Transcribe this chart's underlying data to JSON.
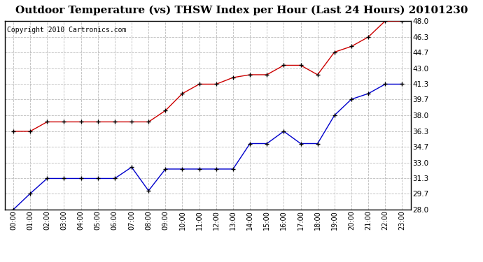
{
  "title": "Outdoor Temperature (vs) THSW Index per Hour (Last 24 Hours) 20101230",
  "copyright": "Copyright 2010 Cartronics.com",
  "hours": [
    "00:00",
    "01:00",
    "02:00",
    "03:00",
    "04:00",
    "05:00",
    "06:00",
    "07:00",
    "08:00",
    "09:00",
    "10:00",
    "11:00",
    "12:00",
    "13:00",
    "14:00",
    "15:00",
    "16:00",
    "17:00",
    "18:00",
    "19:00",
    "20:00",
    "21:00",
    "22:00",
    "23:00"
  ],
  "blue_temp": [
    28.0,
    29.7,
    31.3,
    31.3,
    31.3,
    31.3,
    31.3,
    32.5,
    30.0,
    32.3,
    32.3,
    32.3,
    32.3,
    32.3,
    35.0,
    35.0,
    36.3,
    35.0,
    35.0,
    38.0,
    39.7,
    40.3,
    41.3,
    41.3
  ],
  "red_thsw": [
    36.3,
    36.3,
    37.3,
    37.3,
    37.3,
    37.3,
    37.3,
    37.3,
    37.3,
    38.5,
    40.3,
    41.3,
    41.3,
    42.0,
    42.3,
    42.3,
    43.3,
    43.3,
    42.3,
    44.7,
    45.3,
    46.3,
    48.0,
    48.0
  ],
  "ylim_min": 28.0,
  "ylim_max": 48.0,
  "yticks": [
    28.0,
    29.7,
    31.3,
    33.0,
    34.7,
    36.3,
    38.0,
    39.7,
    41.3,
    43.0,
    44.7,
    46.3,
    48.0
  ],
  "ytick_labels": [
    "28.0",
    "29.7",
    "31.3",
    "33.0",
    "34.7",
    "36.3",
    "38.0",
    "39.7",
    "41.3",
    "43.0",
    "44.7",
    "46.3",
    "48.0"
  ],
  "blue_color": "#0000cc",
  "red_color": "#cc0000",
  "grid_color": "#bbbbbb",
  "bg_color": "#ffffff",
  "title_fontsize": 11,
  "copyright_fontsize": 7,
  "tick_fontsize": 7.5,
  "xtick_fontsize": 7
}
